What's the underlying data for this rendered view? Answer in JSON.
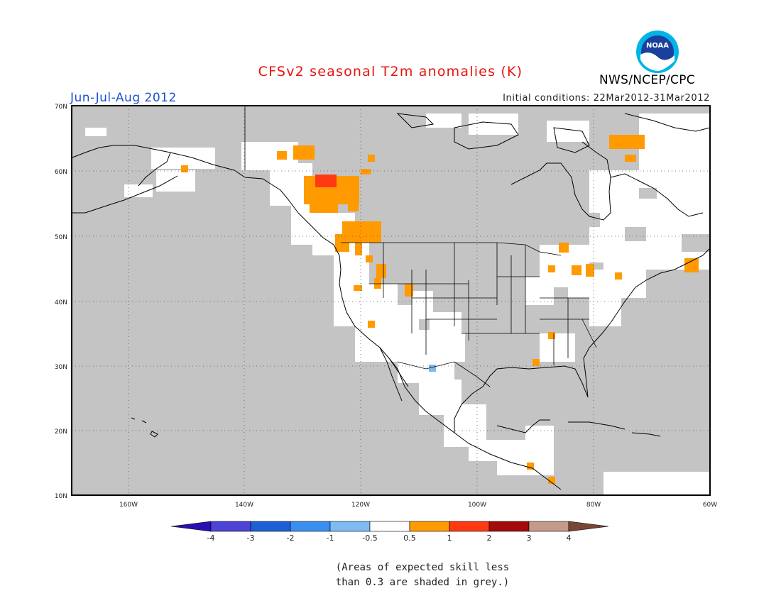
{
  "header": {
    "title": "CFSv2 seasonal T2m anomalies (K)",
    "period": "Jun-Jul-Aug 2012",
    "initial_conditions": "Initial conditions: 22Mar2012-31Mar2012",
    "agency": "NWS/NCEP/CPC",
    "logo_text": "NOAA"
  },
  "map": {
    "lon_labels": [
      "160W",
      "140W",
      "120W",
      "100W",
      "80W",
      "60W"
    ],
    "lat_labels": [
      "70N",
      "60N",
      "50N",
      "40N",
      "30N",
      "20N",
      "10N"
    ],
    "extent": {
      "lon": [
        -172,
        -60
      ],
      "lat": [
        10,
        70
      ]
    }
  },
  "colorbar": {
    "labels": [
      "-4",
      "-3",
      "-2",
      "-1",
      "-0.5",
      "0.5",
      "1",
      "2",
      "3",
      "4"
    ],
    "colors": [
      "#2a0fb0",
      "#4d44d6",
      "#1f5fd6",
      "#3a8ef0",
      "#7fbaf0",
      "#ffffff",
      "#ff9a00",
      "#ff3a12",
      "#a30a0a",
      "#c49a8a",
      "#7a4636"
    ]
  },
  "colors": {
    "skill_mask_grey": "#c4c4c4",
    "ocean_grey": "#c4c4c4",
    "land_no_anomaly": "#ffffff"
  },
  "note": {
    "line1": "(Areas of expected skill less",
    "line2": "than 0.3 are shaded in grey.)"
  }
}
